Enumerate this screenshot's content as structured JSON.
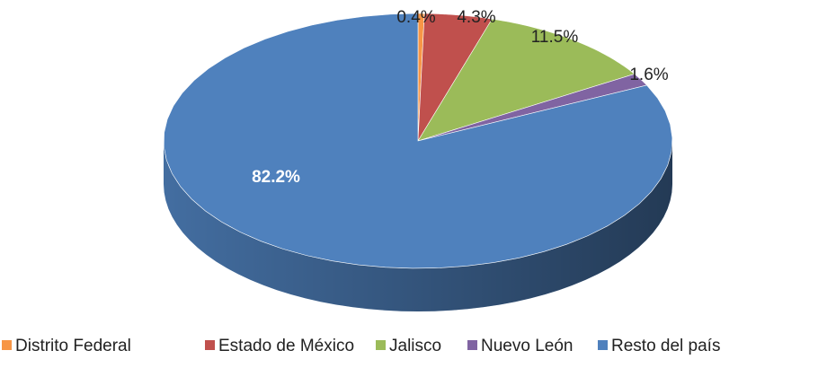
{
  "chart_data": {
    "type": "pie",
    "categories": [
      "Distrito Federal",
      "Estado de México",
      "Jalisco",
      "Nuevo León",
      "Resto del país"
    ],
    "values": [
      0.4,
      4.3,
      11.5,
      1.6,
      82.2
    ],
    "value_labels": [
      "0.4%",
      "4.3%",
      "11.5%",
      "1.6%",
      "82.2%"
    ],
    "colors": [
      "#f79646",
      "#c0504d",
      "#9bbb59",
      "#8064a2",
      "#4f81bd"
    ],
    "legend": "bottom"
  }
}
